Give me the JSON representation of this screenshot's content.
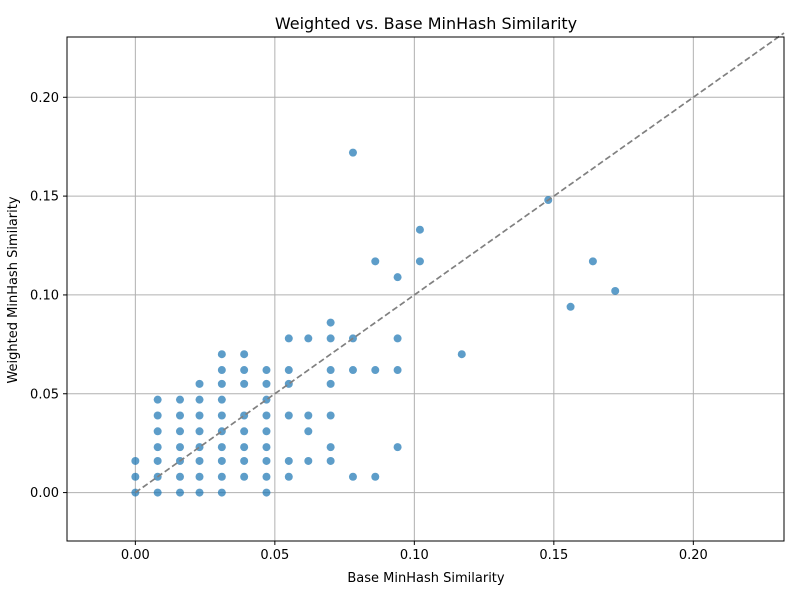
{
  "chart_data": {
    "type": "scatter",
    "title": "Weighted vs. Base MinHash Similarity",
    "xlabel": "Base MinHash Similarity",
    "ylabel": "Weighted MinHash Similarity",
    "xlim": [
      -0.0245,
      0.2325
    ],
    "ylim": [
      -0.0245,
      0.2305
    ],
    "xticks": [
      "0.00",
      "0.05",
      "0.10",
      "0.15",
      "0.20"
    ],
    "yticks": [
      "0.00",
      "0.05",
      "0.10",
      "0.15",
      "0.20"
    ],
    "grid": true,
    "legend": "none",
    "point_color": "#1f77b4",
    "reference_line": {
      "style": "dashed",
      "color": "#808080",
      "from": [
        0,
        0
      ],
      "to": [
        0.2325,
        0.2325
      ]
    },
    "points": [
      [
        0.0,
        0.0
      ],
      [
        0.0,
        0.008
      ],
      [
        0.0,
        0.016
      ],
      [
        0.008,
        0.0
      ],
      [
        0.008,
        0.008
      ],
      [
        0.008,
        0.016
      ],
      [
        0.008,
        0.023
      ],
      [
        0.008,
        0.031
      ],
      [
        0.008,
        0.039
      ],
      [
        0.008,
        0.047
      ],
      [
        0.016,
        0.0
      ],
      [
        0.016,
        0.008
      ],
      [
        0.016,
        0.016
      ],
      [
        0.016,
        0.023
      ],
      [
        0.016,
        0.031
      ],
      [
        0.016,
        0.039
      ],
      [
        0.016,
        0.047
      ],
      [
        0.023,
        0.0
      ],
      [
        0.023,
        0.008
      ],
      [
        0.023,
        0.016
      ],
      [
        0.023,
        0.023
      ],
      [
        0.023,
        0.031
      ],
      [
        0.023,
        0.039
      ],
      [
        0.023,
        0.047
      ],
      [
        0.023,
        0.055
      ],
      [
        0.031,
        0.0
      ],
      [
        0.031,
        0.008
      ],
      [
        0.031,
        0.016
      ],
      [
        0.031,
        0.023
      ],
      [
        0.031,
        0.031
      ],
      [
        0.031,
        0.039
      ],
      [
        0.031,
        0.047
      ],
      [
        0.031,
        0.055
      ],
      [
        0.031,
        0.062
      ],
      [
        0.031,
        0.07
      ],
      [
        0.039,
        0.008
      ],
      [
        0.039,
        0.016
      ],
      [
        0.039,
        0.023
      ],
      [
        0.039,
        0.031
      ],
      [
        0.039,
        0.039
      ],
      [
        0.039,
        0.055
      ],
      [
        0.039,
        0.062
      ],
      [
        0.039,
        0.07
      ],
      [
        0.047,
        0.0
      ],
      [
        0.047,
        0.008
      ],
      [
        0.047,
        0.016
      ],
      [
        0.047,
        0.023
      ],
      [
        0.047,
        0.031
      ],
      [
        0.047,
        0.039
      ],
      [
        0.047,
        0.047
      ],
      [
        0.047,
        0.055
      ],
      [
        0.047,
        0.062
      ],
      [
        0.055,
        0.008
      ],
      [
        0.055,
        0.016
      ],
      [
        0.055,
        0.039
      ],
      [
        0.055,
        0.055
      ],
      [
        0.055,
        0.062
      ],
      [
        0.055,
        0.078
      ],
      [
        0.062,
        0.016
      ],
      [
        0.062,
        0.031
      ],
      [
        0.062,
        0.039
      ],
      [
        0.062,
        0.078
      ],
      [
        0.07,
        0.016
      ],
      [
        0.07,
        0.023
      ],
      [
        0.07,
        0.039
      ],
      [
        0.07,
        0.055
      ],
      [
        0.07,
        0.062
      ],
      [
        0.07,
        0.078
      ],
      [
        0.07,
        0.086
      ],
      [
        0.078,
        0.008
      ],
      [
        0.078,
        0.062
      ],
      [
        0.078,
        0.078
      ],
      [
        0.078,
        0.172
      ],
      [
        0.086,
        0.008
      ],
      [
        0.086,
        0.062
      ],
      [
        0.086,
        0.117
      ],
      [
        0.094,
        0.023
      ],
      [
        0.094,
        0.062
      ],
      [
        0.094,
        0.078
      ],
      [
        0.094,
        0.109
      ],
      [
        0.102,
        0.117
      ],
      [
        0.102,
        0.133
      ],
      [
        0.117,
        0.07
      ],
      [
        0.148,
        0.148
      ],
      [
        0.156,
        0.094
      ],
      [
        0.164,
        0.117
      ],
      [
        0.172,
        0.102
      ]
    ]
  }
}
